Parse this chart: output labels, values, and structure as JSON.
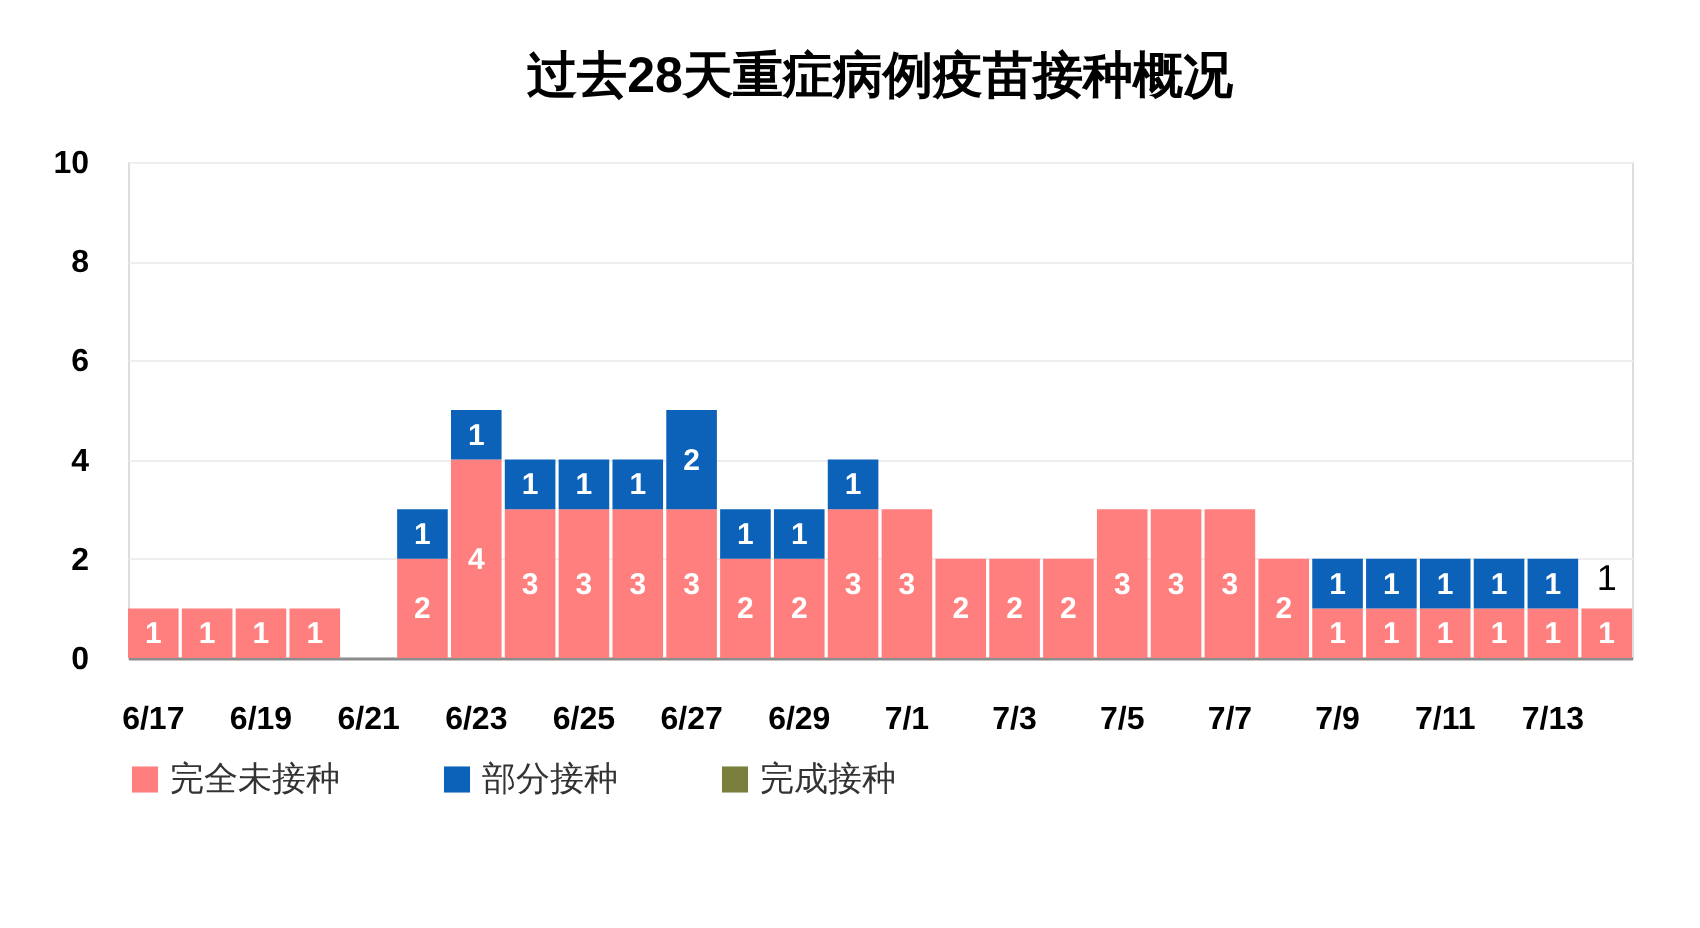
{
  "chart_data": {
    "type": "bar",
    "title": "过去28天重症病例疫苗接种概况",
    "categories": [
      "6/17",
      null,
      "6/19",
      null,
      "6/21",
      null,
      "6/23",
      null,
      "6/25",
      null,
      "6/27",
      null,
      "6/29",
      null,
      "7/1",
      null,
      "7/3",
      null,
      "7/5",
      null,
      "7/7",
      null,
      "7/9",
      null,
      "7/11",
      null,
      "7/13",
      null
    ],
    "series": [
      {
        "name": "完全未接种",
        "color": "#ff7f7f",
        "values": [
          1,
          1,
          1,
          1,
          null,
          2,
          4,
          3,
          3,
          3,
          3,
          2,
          2,
          3,
          3,
          2,
          2,
          2,
          3,
          3,
          3,
          2,
          1,
          1,
          1,
          1,
          1,
          1
        ]
      },
      {
        "name": "部分接种",
        "color": "#0b62b8",
        "values": [
          null,
          null,
          null,
          null,
          null,
          1,
          1,
          1,
          1,
          1,
          2,
          1,
          1,
          1,
          null,
          null,
          null,
          null,
          null,
          null,
          null,
          null,
          1,
          1,
          1,
          1,
          1,
          null
        ]
      },
      {
        "name": "完成接种",
        "color": "#7a7f3d",
        "values": [
          null,
          null,
          null,
          null,
          null,
          null,
          null,
          null,
          null,
          null,
          null,
          null,
          null,
          null,
          null,
          null,
          null,
          null,
          null,
          null,
          null,
          null,
          null,
          null,
          null,
          null,
          null,
          null
        ]
      }
    ],
    "stacked": true,
    "ylim": [
      0,
      10
    ],
    "yticks": [
      0,
      2,
      4,
      6,
      8,
      10
    ],
    "grid": "y",
    "legend": "bottom",
    "data_labels": true,
    "totals": [
      null,
      null,
      null,
      null,
      null,
      null,
      null,
      null,
      null,
      null,
      null,
      null,
      null,
      null,
      null,
      null,
      null,
      null,
      null,
      null,
      null,
      null,
      null,
      null,
      null,
      null,
      null,
      "1"
    ]
  }
}
